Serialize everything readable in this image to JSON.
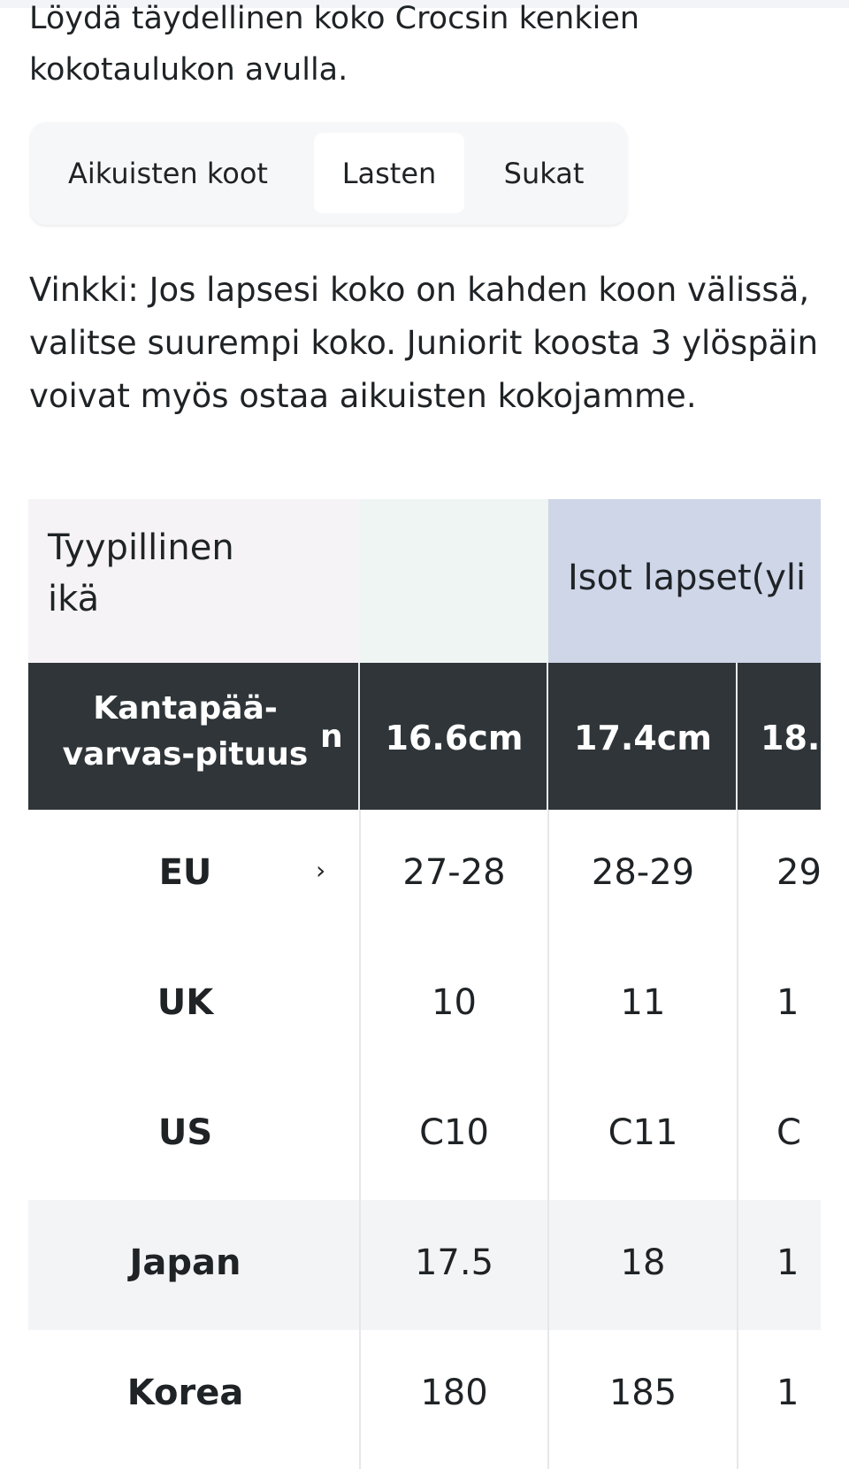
{
  "intro": {
    "lines": [
      "Löydä täydellinen koko Crocsin kenkien",
      "kokotaulukon avulla."
    ]
  },
  "tabs": {
    "items": [
      "Aikuisten koot",
      "Lasten",
      "Sukat"
    ],
    "active": 1
  },
  "tip": {
    "lines": [
      "Vinkki: Jos lapsesi koko on kahden koon välissä,",
      "valitse suurempi koko. Juniorit koosta 3 ylöspäin",
      "voivat myös ostaa aikuisten kokojamme."
    ]
  },
  "table": {
    "group_row": {
      "label_lines": [
        "Tyypillinen",
        "ikä"
      ],
      "groups": [
        null,
        "Isot lapset(yli",
        null
      ]
    },
    "header": {
      "label_lines": [
        "Kantapää-",
        "varvas-pituus"
      ],
      "peek": "n",
      "values": [
        "16.6cm",
        "17.4cm",
        "18."
      ]
    },
    "rows": [
      {
        "label": "EU",
        "peek": "›",
        "values": [
          "27-28",
          "28-29",
          "29"
        ]
      },
      {
        "label": "UK",
        "values": [
          "10",
          "11",
          "1"
        ]
      },
      {
        "label": "US",
        "values": [
          "C10",
          "C11",
          "C"
        ]
      },
      {
        "label": "Japan",
        "values": [
          "17.5",
          "18",
          "1"
        ]
      },
      {
        "label": "Korea",
        "values": [
          "180",
          "185",
          "1"
        ]
      }
    ]
  }
}
